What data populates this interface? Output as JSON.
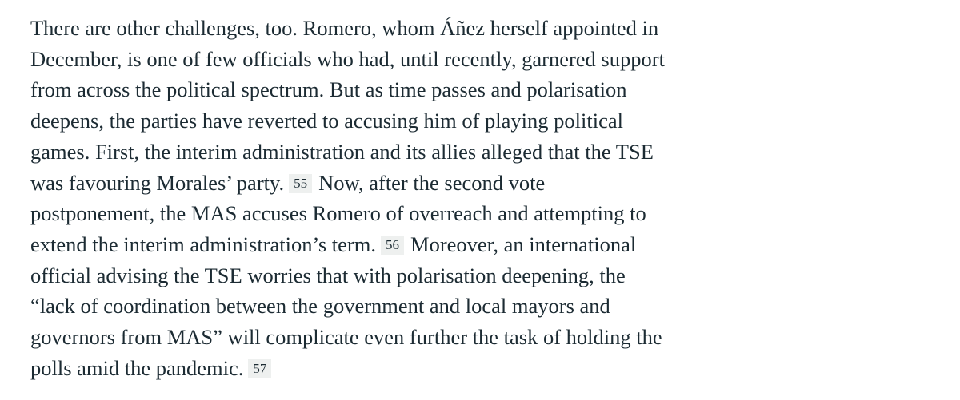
{
  "paragraph": {
    "lines": [
      "There are other challenges, too. Romero, whom Áñez herself appointed in",
      "December, is one of few officials who had, until recently, garnered support",
      "from across the political spectrum. But as time passes and polarisation",
      "deepens, the parties have reverted to accusing him of playing political",
      "games. First, the interim administration and its allies alleged that the TSE",
      "was favouring Morales’ party.",
      "Now, after the second vote",
      "postponement, the MAS accuses Romero of overreach and attempting to",
      "extend the interim administration’s term.",
      "Moreover, an international",
      "official advising the TSE worries that with polarisation deepening, the",
      "“lack of coordination between the government and local mayors and",
      "governors from MAS” will complicate even further the task of holding the",
      "polls amid the pandemic."
    ],
    "footnotes": [
      "55",
      "56",
      "57"
    ]
  },
  "colors": {
    "text": "#1c2b33",
    "footnote_bg": "#eef0ef",
    "background": "#ffffff"
  }
}
